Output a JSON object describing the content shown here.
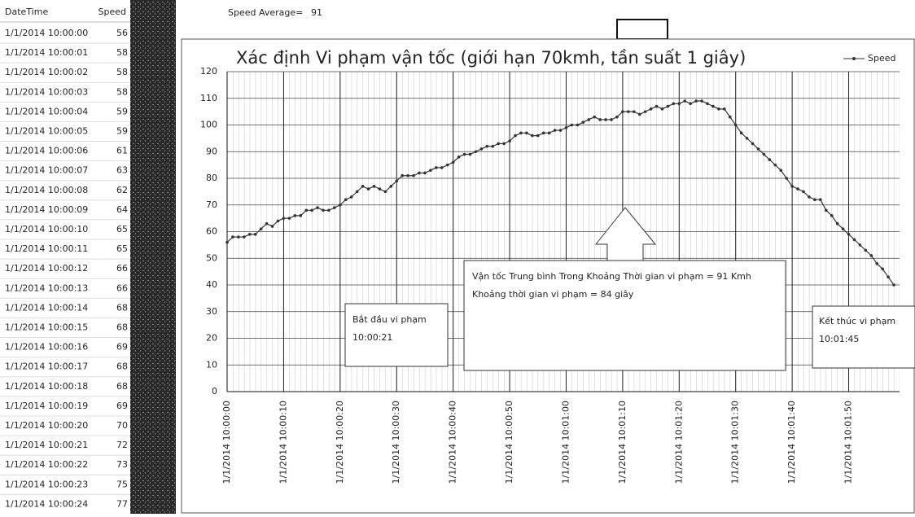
{
  "table": {
    "headers": [
      "DateTime",
      "Speed"
    ],
    "rows": [
      [
        "1/1/2014 10:00:00",
        "56"
      ],
      [
        "1/1/2014 10:00:01",
        "58"
      ],
      [
        "1/1/2014 10:00:02",
        "58"
      ],
      [
        "1/1/2014 10:00:03",
        "58"
      ],
      [
        "1/1/2014 10:00:04",
        "59"
      ],
      [
        "1/1/2014 10:00:05",
        "59"
      ],
      [
        "1/1/2014 10:00:06",
        "61"
      ],
      [
        "1/1/2014 10:00:07",
        "63"
      ],
      [
        "1/1/2014 10:00:08",
        "62"
      ],
      [
        "1/1/2014 10:00:09",
        "64"
      ],
      [
        "1/1/2014 10:00:10",
        "65"
      ],
      [
        "1/1/2014 10:00:11",
        "65"
      ],
      [
        "1/1/2014 10:00:12",
        "66"
      ],
      [
        "1/1/2014 10:00:13",
        "66"
      ],
      [
        "1/1/2014 10:00:14",
        "68"
      ],
      [
        "1/1/2014 10:00:15",
        "68"
      ],
      [
        "1/1/2014 10:00:16",
        "69"
      ],
      [
        "1/1/2014 10:00:17",
        "68"
      ],
      [
        "1/1/2014 10:00:18",
        "68"
      ],
      [
        "1/1/2014 10:00:19",
        "69"
      ],
      [
        "1/1/2014 10:00:20",
        "70"
      ],
      [
        "1/1/2014 10:00:21",
        "72"
      ],
      [
        "1/1/2014 10:00:22",
        "73"
      ],
      [
        "1/1/2014 10:00:23",
        "75"
      ],
      [
        "1/1/2014 10:00:24",
        "77"
      ]
    ]
  },
  "average": {
    "label": "Speed Average=",
    "value": "91"
  },
  "chart_data": {
    "type": "line",
    "title": "Xác định Vi phạm vận tốc (giới hạn 70kmh, tần suất 1 giây)",
    "categories": [
      "1/1/2014 10:00:00",
      null,
      null,
      null,
      null,
      null,
      null,
      null,
      null,
      null,
      "1/1/2014 10:00:10",
      null,
      null,
      null,
      null,
      null,
      null,
      null,
      null,
      null,
      "1/1/2014 10:00:20",
      null,
      null,
      null,
      null,
      null,
      null,
      null,
      null,
      null,
      "1/1/2014 10:00:30",
      null,
      null,
      null,
      null,
      null,
      null,
      null,
      null,
      null,
      "1/1/2014 10:00:40",
      null,
      null,
      null,
      null,
      null,
      null,
      null,
      null,
      null,
      "1/1/2014 10:00:50",
      null,
      null,
      null,
      null,
      null,
      null,
      null,
      null,
      null,
      "1/1/2014 10:01:00",
      null,
      null,
      null,
      null,
      null,
      null,
      null,
      null,
      null,
      "1/1/2014 10:01:10",
      null,
      null,
      null,
      null,
      null,
      null,
      null,
      null,
      null,
      "1/1/2014 10:01:20",
      null,
      null,
      null,
      null,
      null,
      null,
      null,
      null,
      null,
      "1/1/2014 10:01:30",
      null,
      null,
      null,
      null,
      null,
      null,
      null,
      null,
      null,
      "1/1/2014 10:01:40",
      null,
      null,
      null,
      null,
      null,
      null,
      null,
      null,
      null,
      "1/1/2014 10:01:50",
      null,
      null,
      null,
      null,
      null,
      null,
      null,
      null
    ],
    "series": [
      {
        "name": "Speed",
        "color": "#333333",
        "values": [
          56,
          58,
          58,
          58,
          59,
          59,
          61,
          63,
          62,
          64,
          65,
          65,
          66,
          66,
          68,
          68,
          69,
          68,
          68,
          69,
          70,
          72,
          73,
          75,
          77,
          76,
          77,
          76,
          75,
          77,
          79,
          81,
          81,
          81,
          82,
          82,
          83,
          84,
          84,
          85,
          86,
          88,
          89,
          89,
          90,
          91,
          92,
          92,
          93,
          93,
          94,
          96,
          97,
          97,
          96,
          96,
          97,
          97,
          98,
          98,
          99,
          100,
          100,
          101,
          102,
          103,
          102,
          102,
          102,
          103,
          105,
          105,
          105,
          104,
          105,
          106,
          107,
          106,
          107,
          108,
          108,
          109,
          108,
          109,
          109,
          108,
          107,
          106,
          106,
          103,
          100,
          97,
          95,
          93,
          91,
          89,
          87,
          85,
          83,
          80,
          77,
          76,
          75,
          73,
          72,
          72,
          68,
          66,
          63,
          61,
          59,
          57,
          55,
          53,
          51,
          48,
          46,
          43,
          40
        ]
      }
    ],
    "ylim": [
      0,
      120
    ],
    "yticks": [
      0,
      10,
      20,
      30,
      40,
      50,
      60,
      70,
      80,
      90,
      100,
      110,
      120
    ],
    "grid": true,
    "legend": "top-right",
    "annotations": [
      {
        "lines": [
          "Bắt đầu vi phạm",
          "10:00:21"
        ]
      },
      {
        "lines": [
          "Vận tốc Trung bình Trong Khoảng Thời gian vi phạm = 91 Kmh",
          "Khoảng thời gian vi phạm = 84 giây"
        ]
      },
      {
        "lines": [
          "Kết thúc vi phạm",
          "10:01:45"
        ]
      }
    ]
  }
}
